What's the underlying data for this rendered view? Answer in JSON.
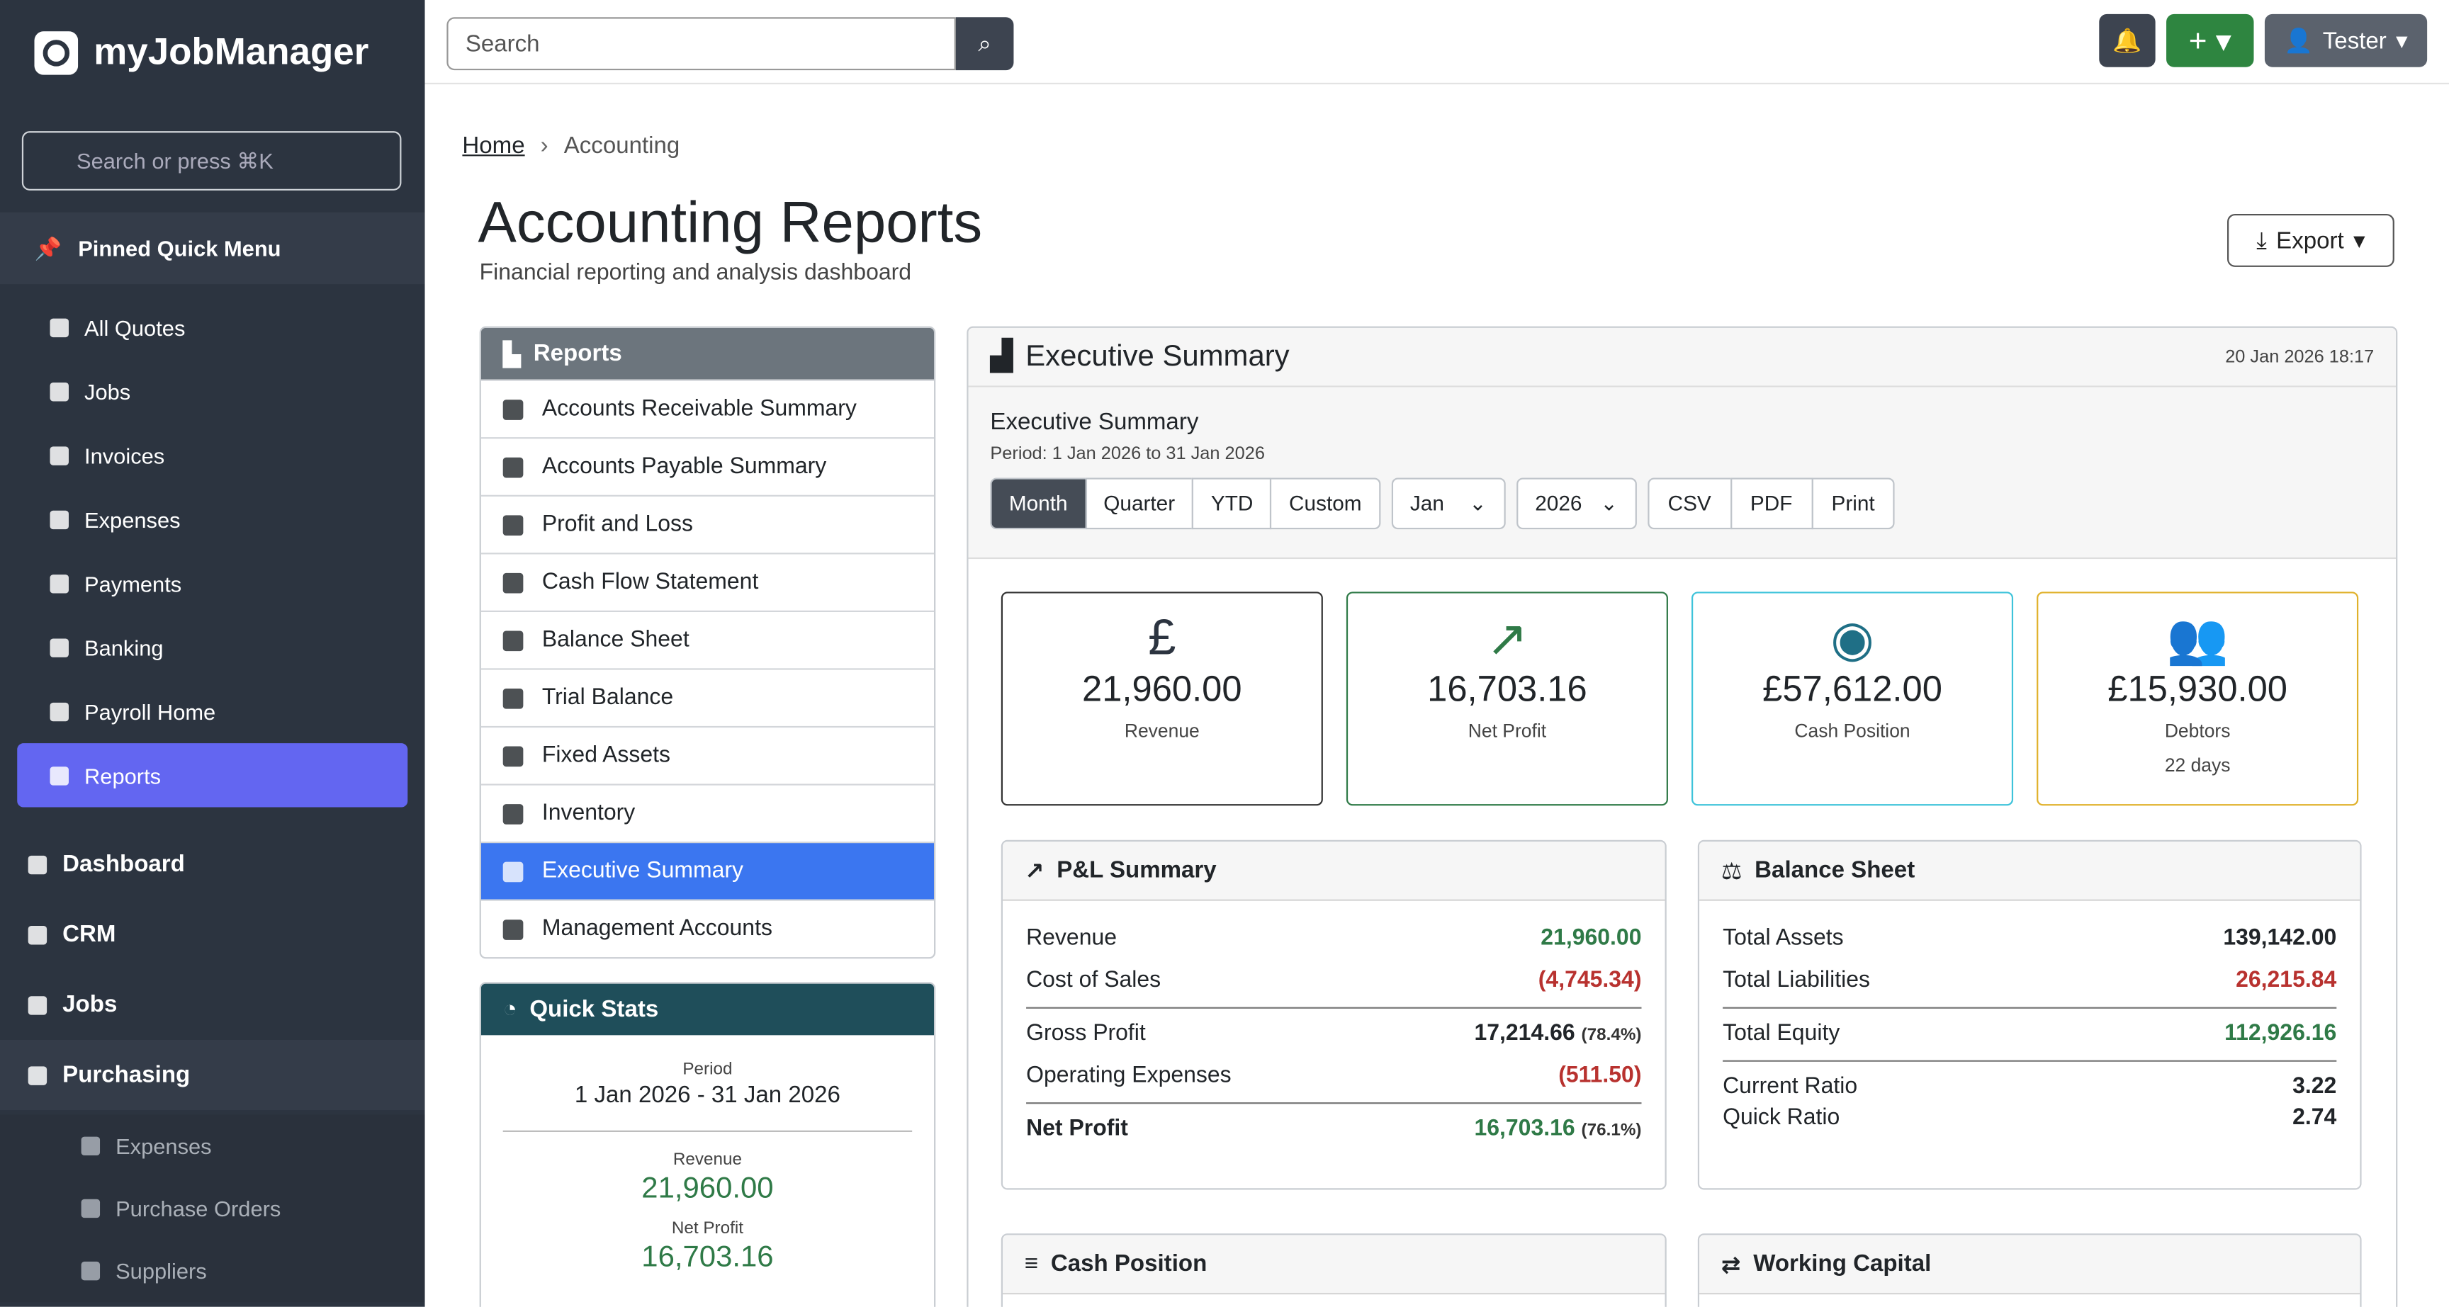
{
  "sidebar": {
    "brand": "myJobManager",
    "search_placeholder": "Search or press ⌘K",
    "pinned_title": "Pinned Quick Menu",
    "pinned_items": [
      "All Quotes",
      "Jobs",
      "Invoices",
      "Expenses",
      "Payments",
      "Banking",
      "Payroll Home",
      "Reports"
    ],
    "sections": [
      "Dashboard",
      "CRM",
      "Jobs",
      "Purchasing"
    ],
    "purchasing_items": [
      "Expenses",
      "Purchase Orders",
      "Suppliers"
    ]
  },
  "topbar": {
    "search_placeholder": "Search",
    "user": "Tester"
  },
  "breadcrumb": [
    "Home",
    "Accounting"
  ],
  "header": {
    "title": "Accounting Reports",
    "subtitle": "Financial reporting and analysis dashboard",
    "export": "Export"
  },
  "reports_menu": {
    "title": "Reports",
    "items": [
      "Accounts Receivable Summary",
      "Accounts Payable Summary",
      "Profit and Loss",
      "Cash Flow Statement",
      "Balance Sheet",
      "Trial Balance",
      "Fixed Assets",
      "Inventory",
      "Executive Summary",
      "Management Accounts"
    ]
  },
  "quick_stats": {
    "title": "Quick Stats",
    "period_label": "Period",
    "period": "1 Jan 2026 - 31 Jan 2026",
    "items": [
      {
        "label": "Revenue",
        "value": "21,960.00"
      },
      {
        "label": "Net Profit",
        "value": "16,703.16"
      }
    ]
  },
  "summary": {
    "title": "Executive Summary",
    "timestamp": "20 Jan 2026 18:17",
    "subtitle": "Executive Summary",
    "period": "Period: 1 Jan 2026 to 31 Jan 2026",
    "ranges": [
      "Month",
      "Quarter",
      "YTD",
      "Custom"
    ],
    "month": "Jan",
    "year": "2026",
    "exports": [
      "CSV",
      "PDF",
      "Print"
    ],
    "kpis": [
      {
        "value": "21,960.00",
        "label": "Revenue"
      },
      {
        "value": "16,703.16",
        "label": "Net Profit"
      },
      {
        "value": "£57,612.00",
        "label": "Cash Position"
      },
      {
        "value": "£15,930.00",
        "label": "Debtors",
        "note": "22 days"
      }
    ],
    "pl": {
      "title": "P&L Summary",
      "rows": [
        {
          "label": "Revenue",
          "value": "21,960.00"
        },
        {
          "label": "Cost of Sales",
          "value": "(4,745.34)"
        },
        {
          "label": "Gross Profit",
          "value": "17,214.66",
          "note": "(78.4%)"
        },
        {
          "label": "Operating Expenses",
          "value": "(511.50)"
        },
        {
          "label": "Net Profit",
          "value": "16,703.16",
          "note": "(76.1%)"
        }
      ]
    },
    "balance": {
      "title": "Balance Sheet",
      "rows": [
        {
          "label": "Total Assets",
          "value": "139,142.00"
        },
        {
          "label": "Total Liabilities",
          "value": "26,215.84"
        },
        {
          "label": "Total Equity",
          "value": "112,926.16"
        },
        {
          "label": "Current Ratio",
          "value": "3.22"
        },
        {
          "label": "Quick Ratio",
          "value": "2.74"
        }
      ]
    },
    "bottom_cards": [
      "Cash Position",
      "Working Capital"
    ]
  }
}
